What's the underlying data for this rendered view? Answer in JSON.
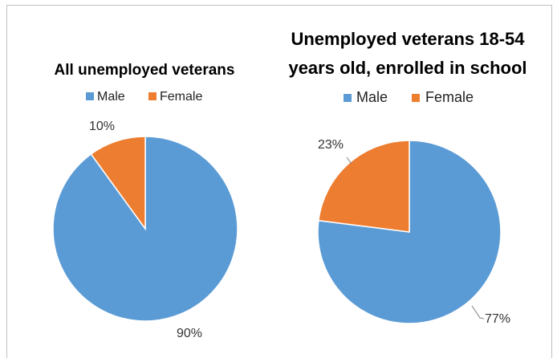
{
  "chart_data": [
    {
      "type": "pie",
      "title_lines": [
        "All unemployed veterans"
      ],
      "categories": [
        "Male",
        "Female"
      ],
      "values": [
        90,
        10
      ],
      "data_labels": [
        "90%",
        "10%"
      ],
      "colors": [
        "#5b9bd5",
        "#ed7d31"
      ],
      "legend": "top"
    },
    {
      "type": "pie",
      "title_lines": [
        "Unemployed veterans 18-54",
        "years old, enrolled in school"
      ],
      "categories": [
        "Male",
        "Female"
      ],
      "values": [
        77,
        23
      ],
      "data_labels": [
        "77%",
        "23%"
      ],
      "colors": [
        "#5b9bd5",
        "#ed7d31"
      ],
      "legend": "top"
    }
  ]
}
